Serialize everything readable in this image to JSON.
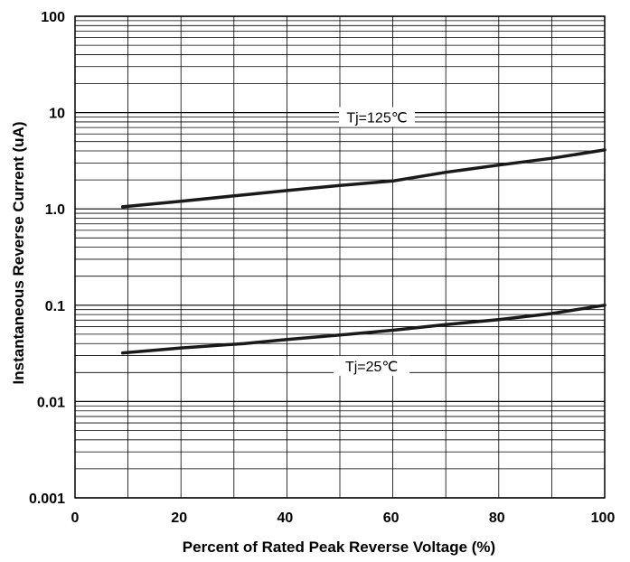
{
  "chart_data": {
    "type": "line",
    "title": "",
    "xlabel": "Percent of Rated Peak Reverse Voltage (%)",
    "ylabel": "Instantaneous Reverse Current (uA)",
    "xlim": [
      0,
      100
    ],
    "ylim": [
      0.001,
      100
    ],
    "yscale": "log",
    "grid": true,
    "x_ticks": [
      0,
      20,
      40,
      60,
      80,
      100
    ],
    "x_tick_labels": [
      "0",
      "20",
      "40",
      "60",
      "80",
      "100"
    ],
    "y_ticks": [
      0.001,
      0.01,
      0.1,
      1,
      10,
      100
    ],
    "y_tick_labels": [
      "0.001",
      "0.01",
      "0.1",
      "1.0",
      "10",
      "100"
    ],
    "series": [
      {
        "name": "Tj=125℃",
        "x": [
          9,
          20,
          32,
          40,
          50,
          60,
          70,
          80,
          90,
          100
        ],
        "y": [
          1.05,
          1.2,
          1.4,
          1.55,
          1.75,
          1.95,
          2.4,
          2.85,
          3.35,
          4.1
        ]
      },
      {
        "name": "Tj=25℃",
        "x": [
          9,
          20,
          32,
          40,
          50,
          60,
          70,
          80,
          90,
          100
        ],
        "y": [
          0.032,
          0.036,
          0.04,
          0.044,
          0.049,
          0.055,
          0.063,
          0.071,
          0.082,
          0.1
        ]
      }
    ],
    "annotations": [
      {
        "text": "Tj=125℃",
        "x": 57,
        "y": 9
      },
      {
        "text": "Tj=25℃",
        "x": 56,
        "y": 0.0235
      }
    ]
  }
}
